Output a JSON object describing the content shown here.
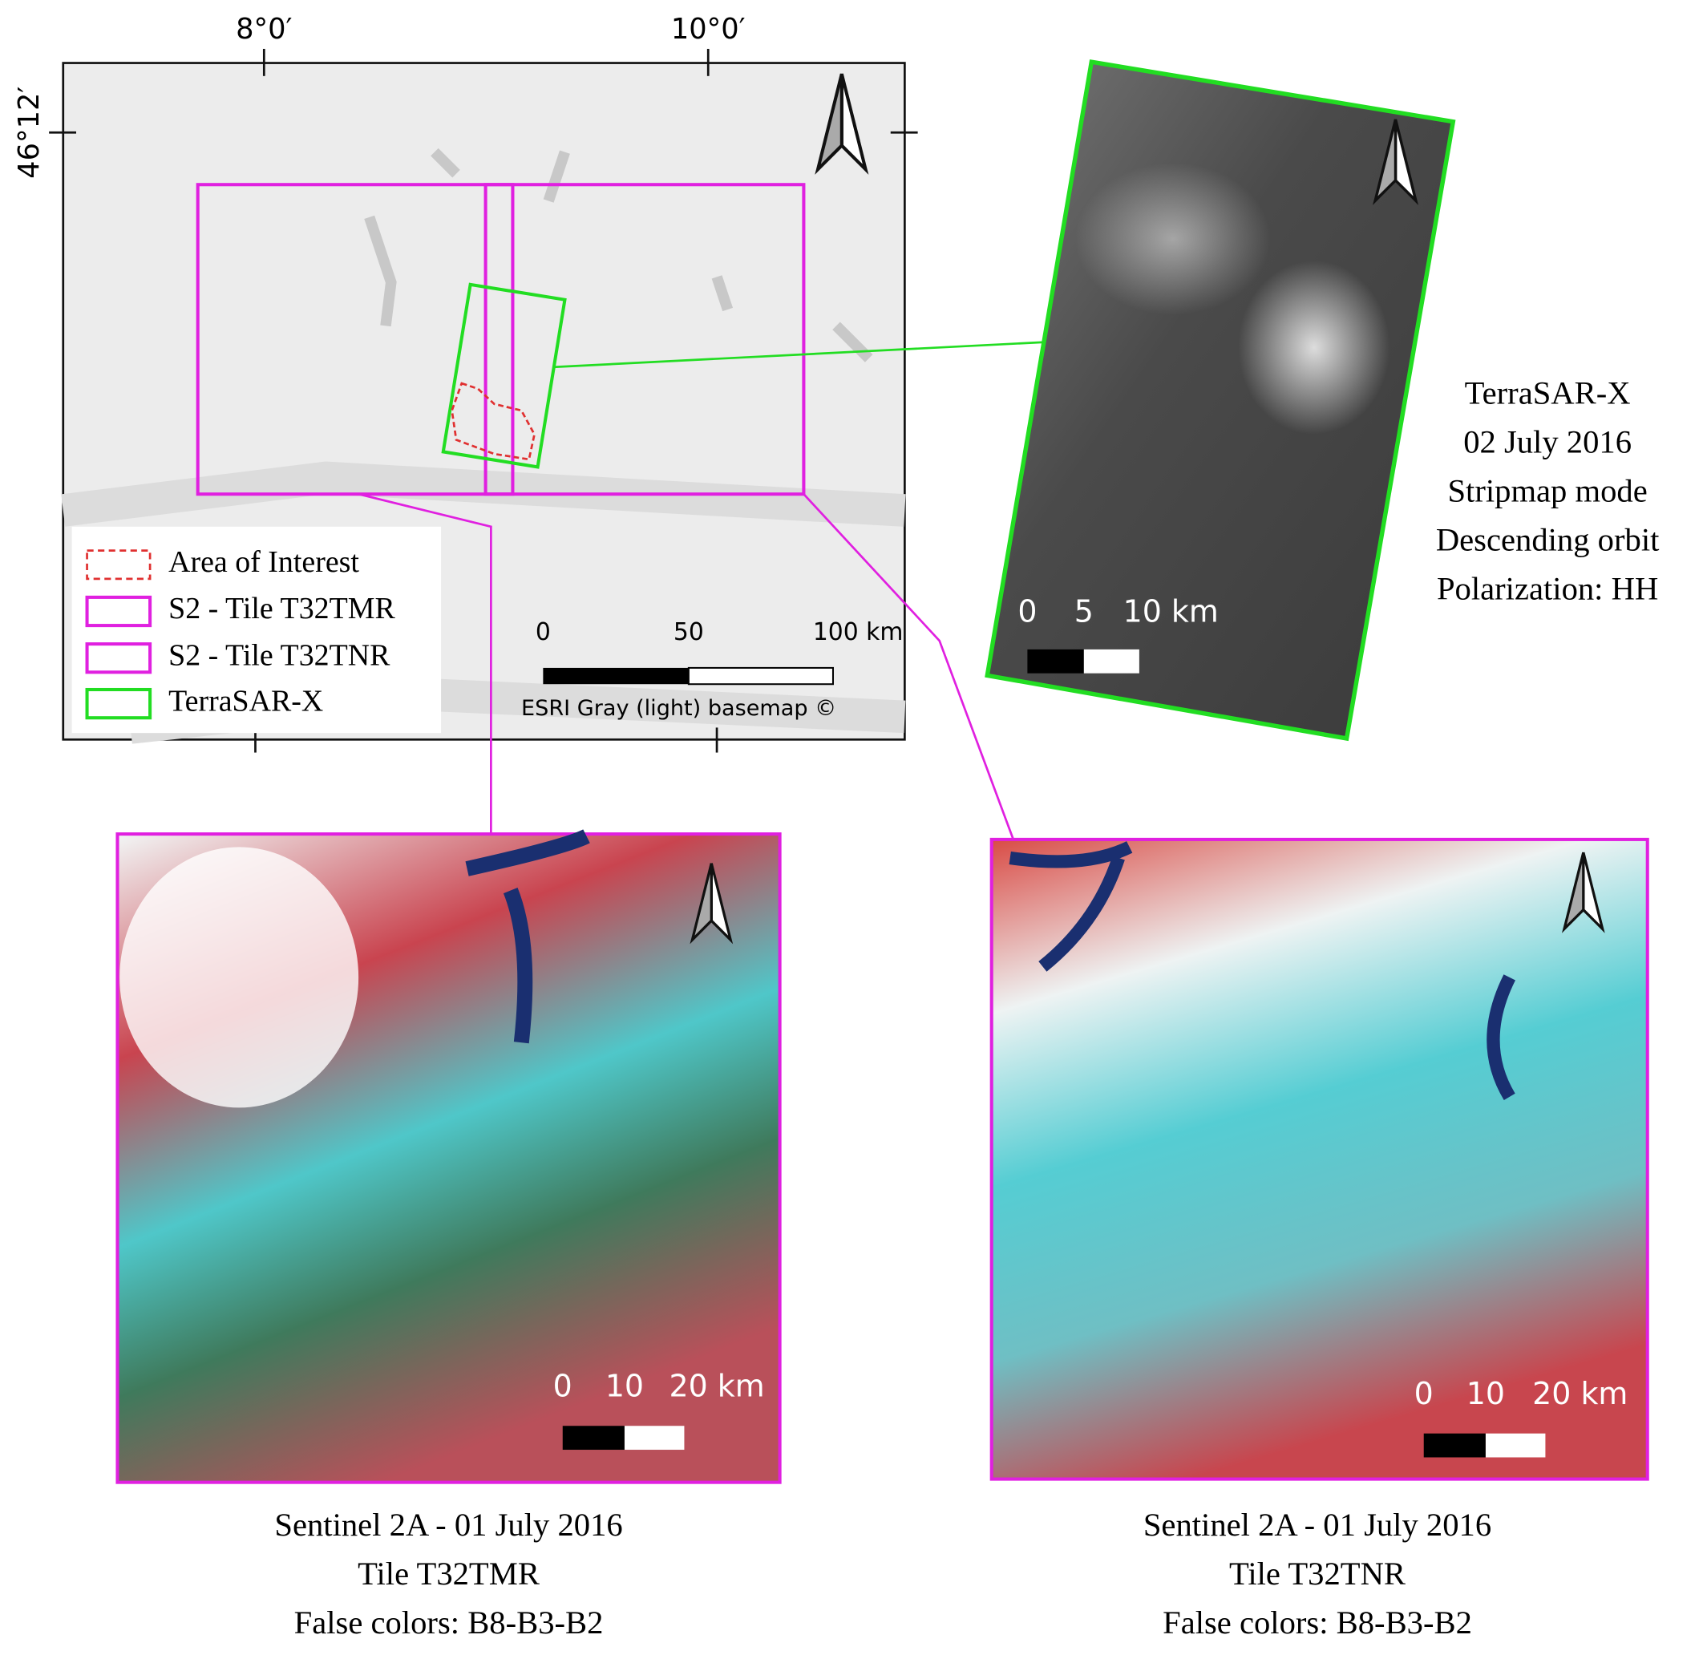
{
  "main_map": {
    "coordinates": {
      "top": [
        "8°0′",
        "10°0′"
      ],
      "left": "46°12′"
    },
    "legend": [
      "Area of Interest",
      "S2 - Tile T32TMR",
      "S2 - Tile T32TNR",
      "TerraSAR-X"
    ],
    "scale_bar": [
      "0",
      "50",
      "100 km"
    ],
    "attribution": "ESRI Gray (light) basemap ©"
  },
  "terrasar": {
    "scale_bar": [
      "0",
      "5",
      "10 km"
    ],
    "caption": [
      "TerraSAR-X",
      "02 July 2016",
      "Stripmap mode",
      "Descending orbit",
      "Polarization: HH"
    ]
  },
  "sentinel_tmr": {
    "scale_bar": [
      "0",
      "10",
      "20 km"
    ],
    "caption": [
      "Sentinel 2A - 01 July 2016",
      "Tile T32TMR",
      "False colors: B8-B3-B2"
    ]
  },
  "sentinel_tnr": {
    "scale_bar": [
      "0",
      "10",
      "20 km"
    ],
    "caption": [
      "Sentinel 2A - 01 July 2016",
      "Tile T32TNR",
      "False colors: B8-B3-B2"
    ]
  }
}
